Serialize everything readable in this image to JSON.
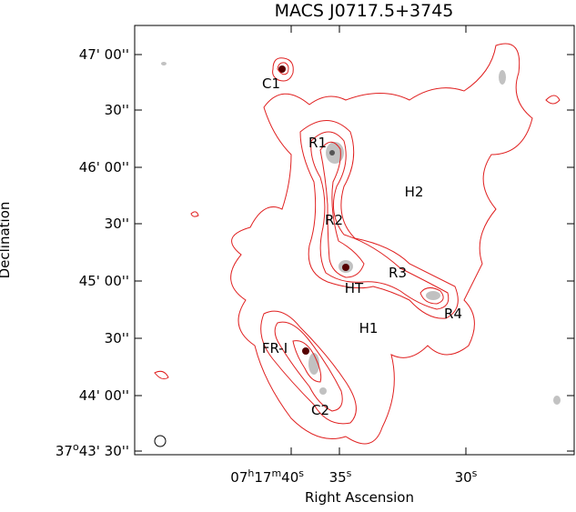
{
  "title": "MACS J0717.5+3745",
  "x_axis": {
    "label": "Right Ascension",
    "ticks": [
      {
        "parts": [
          "07",
          "h",
          "17",
          "m",
          "40",
          "s"
        ]
      },
      {
        "parts": [
          "35",
          "s"
        ]
      },
      {
        "parts": [
          "30",
          "s"
        ]
      }
    ]
  },
  "y_axis": {
    "label": "Declination",
    "ticks": [
      {
        "parts": [
          "47' 00''"
        ]
      },
      {
        "parts": [
          "30''"
        ]
      },
      {
        "parts": [
          "46' 00''"
        ]
      },
      {
        "parts": [
          "30''"
        ]
      },
      {
        "parts": [
          "45' 00''"
        ]
      },
      {
        "parts": [
          "30''"
        ]
      },
      {
        "parts": [
          "44' 00''"
        ]
      },
      {
        "parts": [
          "37",
          "o",
          "43' 30''"
        ]
      }
    ]
  },
  "annotations": [
    "C1",
    "R1",
    "H2",
    "R2",
    "HT",
    "R3",
    "R4",
    "H1",
    "FR-I",
    "C2"
  ]
}
